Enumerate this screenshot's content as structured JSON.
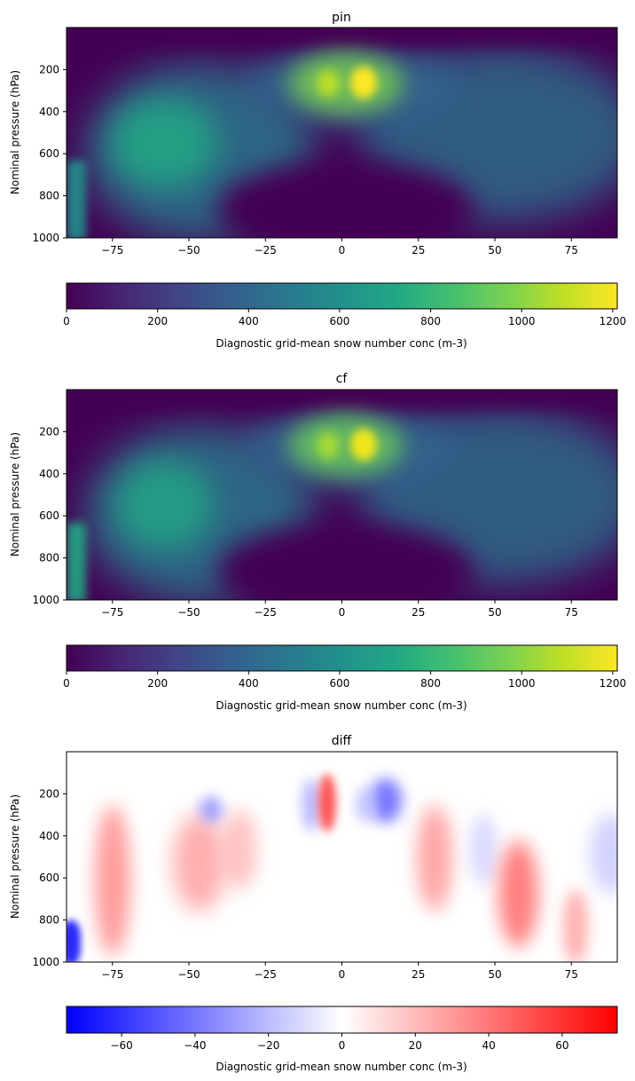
{
  "chart_data": [
    {
      "type": "heatmap",
      "title": "pin",
      "xlabel": "",
      "ylabel": "Nominal pressure (hPa)",
      "xlim": [
        -90,
        90
      ],
      "ylim": [
        1000,
        0
      ],
      "x_ticks": [
        "−75",
        "−50",
        "−25",
        "0",
        "25",
        "50",
        "75"
      ],
      "x_tick_values": [
        -75,
        -50,
        -25,
        0,
        25,
        50,
        75
      ],
      "y_ticks": [
        "200",
        "400",
        "600",
        "800",
        "1000"
      ],
      "y_tick_values": [
        200,
        400,
        600,
        800,
        1000
      ],
      "colormap": "viridis",
      "colorbar": {
        "label": "Diagnostic grid-mean snow number conc (m-3)",
        "range": [
          0,
          1210
        ],
        "ticks": [
          "0",
          "200",
          "400",
          "600",
          "800",
          "1000",
          "1200"
        ],
        "tick_values": [
          0,
          200,
          400,
          600,
          800,
          1000,
          1200
        ]
      },
      "features": [
        {
          "lat": 7,
          "p": 260,
          "value": 1200
        },
        {
          "lat": -5,
          "p": 260,
          "value": 950
        },
        {
          "lat": -68,
          "p": 520,
          "value": 700
        },
        {
          "lat": 45,
          "p": 500,
          "value": 550
        },
        {
          "lat": -88,
          "p": 900,
          "value": 650
        }
      ]
    },
    {
      "type": "heatmap",
      "title": "cf",
      "xlabel": "",
      "ylabel": "Nominal pressure (hPa)",
      "xlim": [
        -90,
        90
      ],
      "ylim": [
        1000,
        0
      ],
      "x_ticks": [
        "−75",
        "−50",
        "−25",
        "0",
        "25",
        "50",
        "75"
      ],
      "x_tick_values": [
        -75,
        -50,
        -25,
        0,
        25,
        50,
        75
      ],
      "y_ticks": [
        "200",
        "400",
        "600",
        "800",
        "1000"
      ],
      "y_tick_values": [
        200,
        400,
        600,
        800,
        1000
      ],
      "colormap": "viridis",
      "colorbar": {
        "label": "Diagnostic grid-mean snow number conc (m-3)",
        "range": [
          0,
          1210
        ],
        "ticks": [
          "0",
          "200",
          "400",
          "600",
          "800",
          "1000",
          "1200"
        ],
        "tick_values": [
          0,
          200,
          400,
          600,
          800,
          1000,
          1200
        ]
      },
      "features": [
        {
          "lat": 7,
          "p": 260,
          "value": 1150
        },
        {
          "lat": -5,
          "p": 260,
          "value": 900
        },
        {
          "lat": -68,
          "p": 520,
          "value": 680
        },
        {
          "lat": 45,
          "p": 500,
          "value": 520
        },
        {
          "lat": -88,
          "p": 900,
          "value": 700
        }
      ]
    },
    {
      "type": "heatmap",
      "title": "diff",
      "xlabel": "",
      "ylabel": "Nominal pressure (hPa)",
      "xlim": [
        -90,
        90
      ],
      "ylim": [
        1000,
        0
      ],
      "x_ticks": [
        "−75",
        "−50",
        "−25",
        "0",
        "25",
        "50",
        "75"
      ],
      "x_tick_values": [
        -75,
        -50,
        -25,
        0,
        25,
        50,
        75
      ],
      "y_ticks": [
        "200",
        "400",
        "600",
        "800",
        "1000"
      ],
      "y_tick_values": [
        200,
        400,
        600,
        800,
        1000
      ],
      "colormap": "bwr",
      "colorbar": {
        "label": "Diagnostic grid-mean snow number conc (m-3)",
        "range": [
          -75,
          75
        ],
        "ticks": [
          "−60",
          "−40",
          "−20",
          "0",
          "20",
          "40",
          "60"
        ],
        "tick_values": [
          -60,
          -40,
          -20,
          0,
          20,
          40,
          60
        ]
      },
      "features": [
        {
          "lat": -78,
          "p": 650,
          "value": 35
        },
        {
          "lat": -50,
          "p": 550,
          "value": 25
        },
        {
          "lat": -40,
          "p": 450,
          "value": 20
        },
        {
          "lat": -5,
          "p": 250,
          "value": 50
        },
        {
          "lat": 13,
          "p": 220,
          "value": -40
        },
        {
          "lat": 30,
          "p": 450,
          "value": 30
        },
        {
          "lat": 57,
          "p": 620,
          "value": 45
        },
        {
          "lat": 77,
          "p": 800,
          "value": 30
        },
        {
          "lat": -90,
          "p": 980,
          "value": -70
        }
      ]
    }
  ]
}
